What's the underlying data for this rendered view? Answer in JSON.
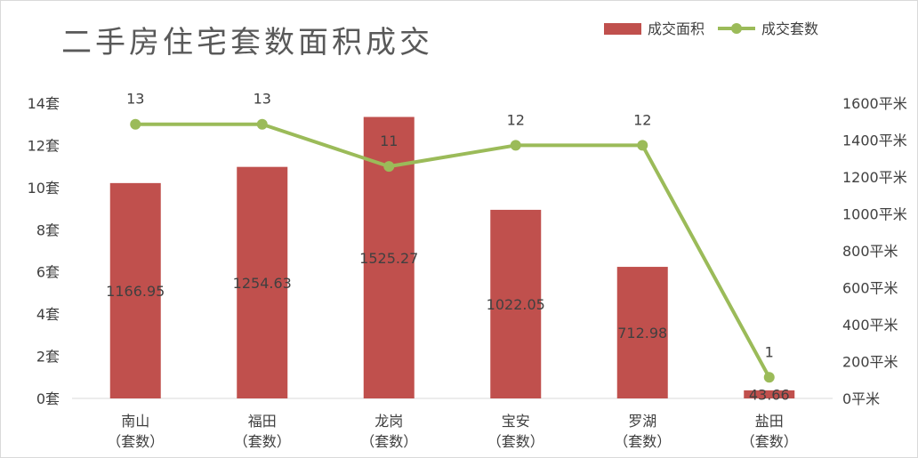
{
  "chart_data": {
    "type": "bar",
    "title": "二手房住宅套数面积成交",
    "categories": [
      "南山",
      "福田",
      "龙岗",
      "宝安",
      "罗湖",
      "盐田"
    ],
    "category_sublabel": "（套数）",
    "series": [
      {
        "name": "成交面积",
        "type": "bar",
        "axis": "right",
        "color": "#c0504d",
        "values": [
          1166.95,
          1254.63,
          1525.27,
          1022.05,
          712.98,
          43.66
        ]
      },
      {
        "name": "成交套数",
        "type": "line",
        "axis": "left",
        "color": "#9bbb59",
        "values": [
          13,
          13,
          11,
          12,
          12,
          1
        ]
      }
    ],
    "y_left": {
      "min": 0,
      "max": 14,
      "step": 2,
      "unit": "套",
      "tick_labels": [
        "0套",
        "2套",
        "4套",
        "6套",
        "8套",
        "10套",
        "12套",
        "14套"
      ]
    },
    "y_right": {
      "min": 0,
      "max": 1600,
      "step": 200,
      "unit": "平米",
      "tick_labels": [
        "0平米",
        "200平米",
        "400平米",
        "600平米",
        "800平米",
        "1000平米",
        "1200平米",
        "1400平米",
        "1600平米"
      ]
    },
    "grid": false,
    "legend": "top-right"
  }
}
